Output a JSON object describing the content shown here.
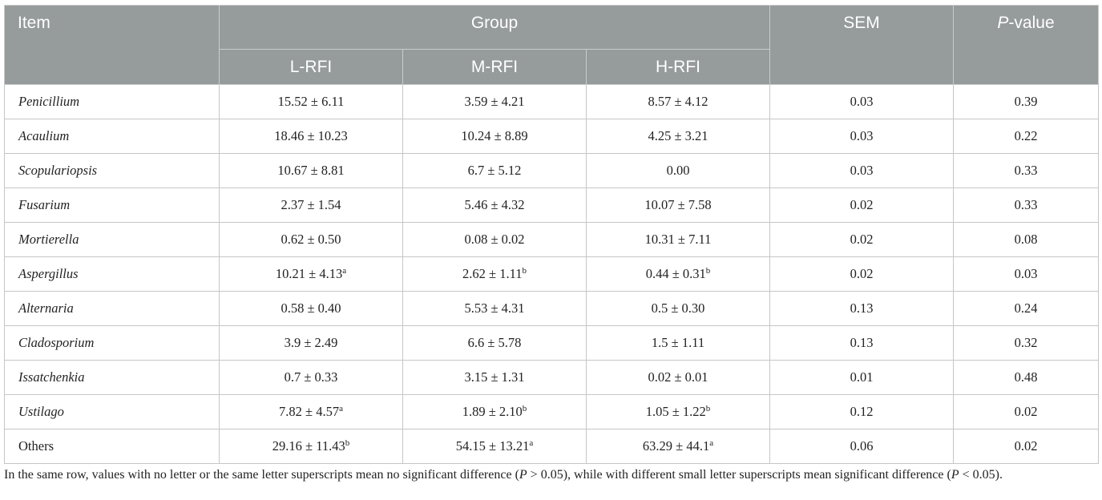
{
  "table": {
    "headers": {
      "item": "Item",
      "group": "Group",
      "sem": "SEM",
      "pvalue_italic": "P",
      "pvalue_rest": "-value",
      "groups": [
        "L-RFI",
        "M-RFI",
        "H-RFI"
      ]
    },
    "rows": [
      {
        "item": "Penicillium",
        "italic": true,
        "cells": [
          {
            "v": "15.52 ± 6.11",
            "sup": ""
          },
          {
            "v": "3.59 ± 4.21",
            "sup": ""
          },
          {
            "v": "8.57 ± 4.12",
            "sup": ""
          }
        ],
        "sem": "0.03",
        "p": "0.39"
      },
      {
        "item": "Acaulium",
        "italic": true,
        "cells": [
          {
            "v": "18.46 ± 10.23",
            "sup": ""
          },
          {
            "v": "10.24 ± 8.89",
            "sup": ""
          },
          {
            "v": "4.25 ± 3.21",
            "sup": ""
          }
        ],
        "sem": "0.03",
        "p": "0.22"
      },
      {
        "item": "Scopulariopsis",
        "italic": true,
        "cells": [
          {
            "v": "10.67 ± 8.81",
            "sup": ""
          },
          {
            "v": "6.7 ± 5.12",
            "sup": ""
          },
          {
            "v": "0.00",
            "sup": ""
          }
        ],
        "sem": "0.03",
        "p": "0.33"
      },
      {
        "item": "Fusarium",
        "italic": true,
        "cells": [
          {
            "v": "2.37 ± 1.54",
            "sup": ""
          },
          {
            "v": "5.46 ± 4.32",
            "sup": ""
          },
          {
            "v": "10.07 ± 7.58",
            "sup": ""
          }
        ],
        "sem": "0.02",
        "p": "0.33"
      },
      {
        "item": "Mortierella",
        "italic": true,
        "cells": [
          {
            "v": "0.62 ± 0.50",
            "sup": ""
          },
          {
            "v": "0.08 ± 0.02",
            "sup": ""
          },
          {
            "v": "10.31 ± 7.11",
            "sup": ""
          }
        ],
        "sem": "0.02",
        "p": "0.08"
      },
      {
        "item": "Aspergillus",
        "italic": true,
        "cells": [
          {
            "v": "10.21 ± 4.13",
            "sup": "a"
          },
          {
            "v": "2.62 ± 1.11",
            "sup": "b"
          },
          {
            "v": "0.44 ± 0.31",
            "sup": "b"
          }
        ],
        "sem": "0.02",
        "p": "0.03"
      },
      {
        "item": "Alternaria",
        "italic": true,
        "cells": [
          {
            "v": "0.58 ± 0.40",
            "sup": ""
          },
          {
            "v": "5.53 ± 4.31",
            "sup": ""
          },
          {
            "v": "0.5 ± 0.30",
            "sup": ""
          }
        ],
        "sem": "0.13",
        "p": "0.24"
      },
      {
        "item": "Cladosporium",
        "italic": true,
        "cells": [
          {
            "v": "3.9 ± 2.49",
            "sup": ""
          },
          {
            "v": "6.6 ± 5.78",
            "sup": ""
          },
          {
            "v": "1.5 ± 1.11",
            "sup": ""
          }
        ],
        "sem": "0.13",
        "p": "0.32"
      },
      {
        "item": "Issatchenkia",
        "italic": true,
        "cells": [
          {
            "v": "0.7 ± 0.33",
            "sup": ""
          },
          {
            "v": "3.15 ± 1.31",
            "sup": ""
          },
          {
            "v": "0.02 ± 0.01",
            "sup": ""
          }
        ],
        "sem": "0.01",
        "p": "0.48"
      },
      {
        "item": "Ustilago",
        "italic": true,
        "cells": [
          {
            "v": "7.82 ± 4.57",
            "sup": "a"
          },
          {
            "v": "1.89 ± 2.10",
            "sup": "b"
          },
          {
            "v": "1.05 ± 1.22",
            "sup": "b"
          }
        ],
        "sem": "0.12",
        "p": "0.02"
      },
      {
        "item": "Others",
        "italic": false,
        "cells": [
          {
            "v": "29.16 ± 11.43",
            "sup": "b"
          },
          {
            "v": "54.15 ± 13.21",
            "sup": "a"
          },
          {
            "v": "63.29 ± 44.1",
            "sup": "a"
          }
        ],
        "sem": "0.06",
        "p": "0.02"
      }
    ]
  },
  "footnote": {
    "t1": "In the same row, values with no letter or the same letter superscripts mean no significant difference (",
    "p1": "P",
    "t2": " > 0.05), while with different small letter superscripts mean significant difference (",
    "p2": "P",
    "t3": " < 0.05)."
  },
  "colors": {
    "header_bg": "#969b9b",
    "header_text": "#ffffff",
    "grid": "#c6c6c6"
  }
}
